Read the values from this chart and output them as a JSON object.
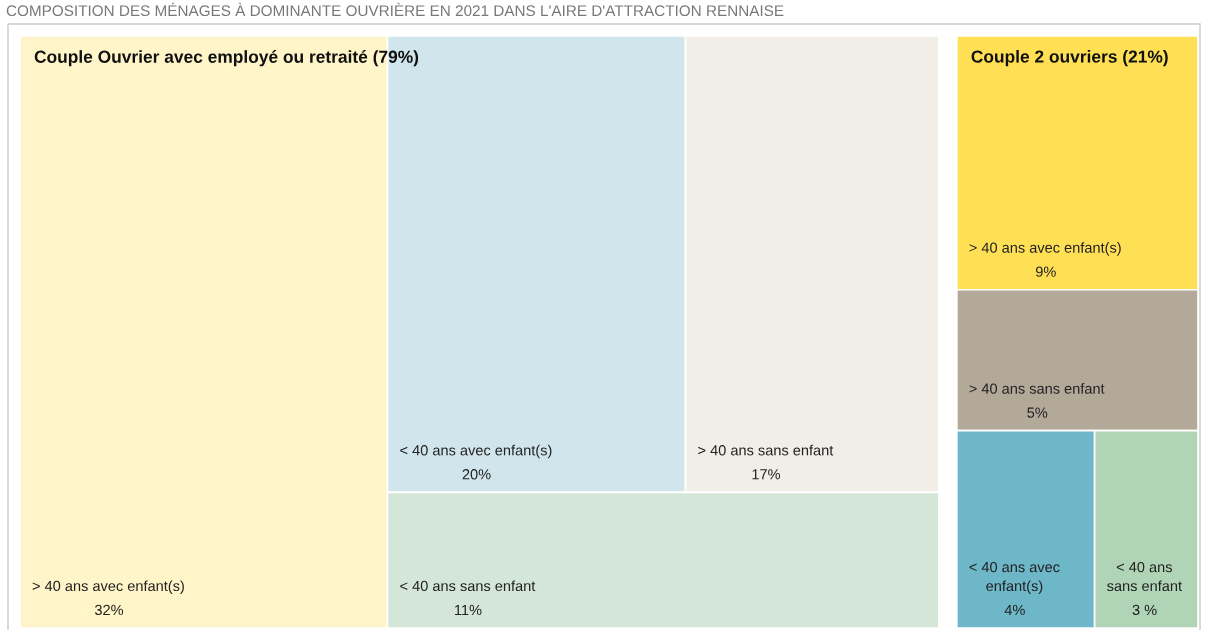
{
  "chart_data": {
    "type": "other",
    "title": "COMPOSITION DES MÉNAGES À DOMINANTE OUVRIÈRE EN 2021 DANS L'AIRE D'ATTRACTION RENNAISE",
    "categories": [
      "> 40 ans avec enfant(s)",
      "< 40 ans avec enfant(s)",
      "> 40 ans sans enfant",
      "< 40 ans sans enfant",
      "> 40 ans avec enfant(s)",
      "> 40 ans sans enfant",
      "< 40 ans avec enfant(s)",
      "< 40 ans sans enfant"
    ],
    "series": [
      {
        "name": "Couple Ouvrier avec employé ou retraité (79%)",
        "values": [
          32,
          20,
          17,
          11,
          null,
          null,
          null,
          null
        ],
        "value_labels": [
          "32%",
          "20%",
          "17%",
          "11%",
          null,
          null,
          null,
          null
        ],
        "colors": [
          "#fff5c8",
          "#d0e6ec",
          "#f1ede7",
          "#d4e6d8",
          null,
          null,
          null,
          null
        ]
      },
      {
        "name": "Couple 2 ouvriers (21%)",
        "values": [
          null,
          null,
          null,
          null,
          9,
          5,
          4,
          3
        ],
        "value_labels": [
          null,
          null,
          null,
          null,
          "9%",
          "5%",
          "4%",
          "3 %"
        ],
        "colors": [
          null,
          null,
          null,
          null,
          "#ffe055",
          "#b3a999",
          "#6db7c8",
          "#b0d4b6"
        ]
      }
    ]
  }
}
